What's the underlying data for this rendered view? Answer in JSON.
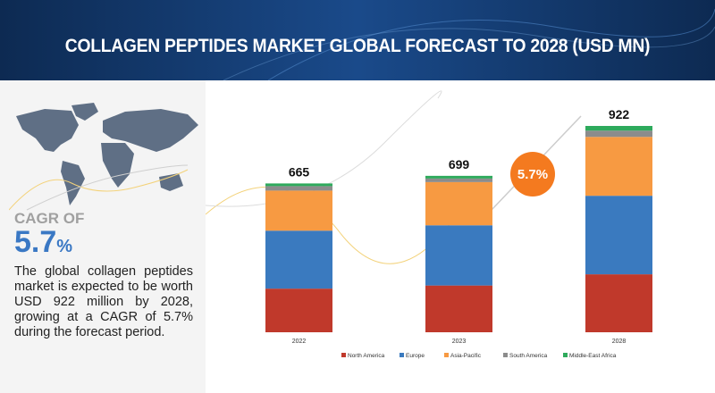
{
  "header": {
    "title": "COLLAGEN PEPTIDES MARKET GLOBAL FORECAST TO 2028 (USD MN)"
  },
  "left_panel": {
    "cagr_label": "CAGR OF",
    "cagr_number": "5.7",
    "cagr_unit": "%",
    "description": "The global collagen peptides market is expected to be worth USD 922 million by 2028, growing at a CAGR of 5.7% during the forecast period.",
    "map_icon": "world-map-icon"
  },
  "cagr_bubble": "5.7%",
  "chart_data": {
    "type": "bar",
    "stacked": true,
    "title": "COLLAGEN PEPTIDES MARKET GLOBAL FORECAST TO 2028 (USD MN)",
    "categories": [
      "2022",
      "2023",
      "2028"
    ],
    "totals": [
      "665",
      "699",
      "922"
    ],
    "series": [
      {
        "name": "North America",
        "color": "#c0392b",
        "values": [
          195,
          209,
          259
        ]
      },
      {
        "name": "Europe",
        "color": "#3a7abf",
        "values": [
          259,
          269,
          351
        ]
      },
      {
        "name": "Asia-Pacific",
        "color": "#f79a42",
        "values": [
          179,
          193,
          263
        ]
      },
      {
        "name": "South America",
        "color": "#8c8c8c",
        "values": [
          20,
          16,
          28
        ]
      },
      {
        "name": "Middle-East Africa",
        "color": "#2eaa5c",
        "values": [
          12,
          12,
          21
        ]
      }
    ],
    "ylim": [
      0,
      922
    ],
    "legend": "bottom",
    "grid": false
  }
}
